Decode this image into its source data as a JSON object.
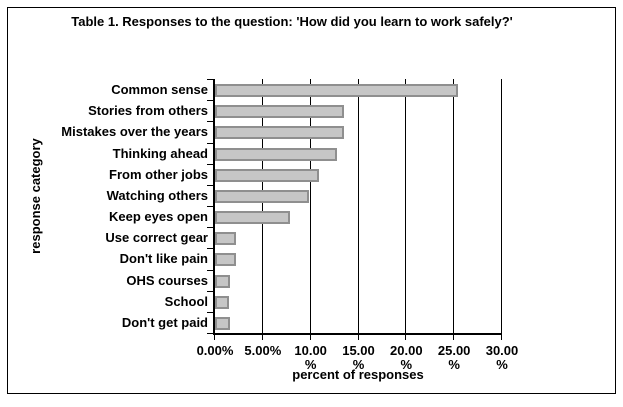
{
  "chart_data": {
    "type": "bar",
    "orientation": "horizontal",
    "title": "Table 1. Responses to the question: 'How did you learn to work safely?'",
    "xlabel": "percent of responses",
    "ylabel": "response category",
    "categories": [
      "Common sense",
      "Stories from others",
      "Mistakes over the years",
      "Thinking ahead",
      "From other jobs",
      "Watching others",
      "Keep eyes open",
      "Use correct gear",
      "Don't like pain",
      "OHS courses",
      "School",
      "Don't get paid"
    ],
    "values": [
      25.4,
      13.5,
      13.5,
      12.8,
      10.9,
      9.8,
      7.8,
      2.2,
      2.2,
      1.6,
      1.5,
      1.6
    ],
    "xlim": [
      0,
      30
    ],
    "x_tick_step": 5,
    "x_tick_labels": [
      "0.00%",
      "5.00%",
      "10.00\n%",
      "15.00\n%",
      "20.00\n%",
      "25.00\n%",
      "30.00\n%"
    ],
    "grid": "vertical-gridlines-every-5-percent",
    "legend": "none",
    "colors": {
      "bar_fill": "#c6c6c6",
      "bar_border": "#8f8f8f",
      "axis": "#000000",
      "text": "#000000",
      "background": "#ffffff"
    }
  }
}
